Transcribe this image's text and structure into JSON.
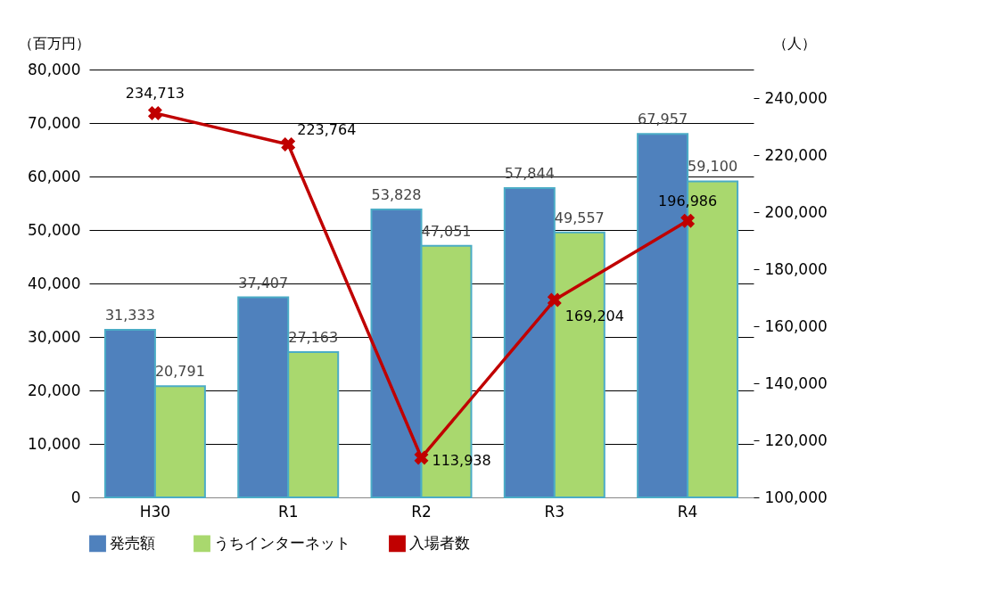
{
  "chart_data": {
    "type": "bar",
    "categories": [
      "H30",
      "R1",
      "R2",
      "R3",
      "R4"
    ],
    "series": [
      {
        "name": "発売額",
        "color": "#4f81bd",
        "values": [
          31333,
          37407,
          53828,
          57844,
          67957
        ],
        "value_labels": [
          "31,333",
          "37,407",
          "53,828",
          "57,844",
          "67,957"
        ]
      },
      {
        "name": "うちインターネット",
        "color": "#a9d86e",
        "values": [
          20791,
          27163,
          47051,
          49557,
          59100
        ],
        "value_labels": [
          "20,791",
          "27,163",
          "47,051",
          "49,557",
          "59,100"
        ]
      },
      {
        "name": "入場者数",
        "type": "line",
        "axis": "y2",
        "color": "#c00000",
        "values": [
          234713,
          223764,
          113938,
          169204,
          196986
        ],
        "value_labels": [
          "234,713",
          "223,764",
          "113,938",
          "169,204",
          "196,986"
        ]
      }
    ],
    "ylabel": "（百万円）",
    "y2label": "（人）",
    "ylim": [
      0,
      80000
    ],
    "yticks": [
      0,
      {
        "value": 10000,
        "label": "10,000"
      },
      {
        "value": 20000,
        "label": "20,000"
      },
      {
        "value": 30000,
        "label": "30,000"
      },
      {
        "value": 40000,
        "label": "40,000"
      },
      {
        "value": 50000,
        "label": "50,000"
      },
      {
        "value": 60000,
        "label": "60,000"
      },
      {
        "value": 70000,
        "label": "70,000"
      },
      {
        "value": 80000,
        "label": "80,000"
      }
    ],
    "y2lim": [
      100000,
      250000
    ],
    "y2ticks": [
      {
        "value": 100000,
        "label": "100,000"
      },
      {
        "value": 120000,
        "label": "120,000"
      },
      {
        "value": 140000,
        "label": "140,000"
      },
      {
        "value": 160000,
        "label": "160,000"
      },
      {
        "value": 180000,
        "label": "180,000"
      },
      {
        "value": 200000,
        "label": "200,000"
      },
      {
        "value": 220000,
        "label": "220,000"
      },
      {
        "value": 240000,
        "label": "240,000"
      }
    ],
    "grid": "y",
    "legend": "bottom",
    "marker": "cross",
    "line_style": "solid"
  }
}
